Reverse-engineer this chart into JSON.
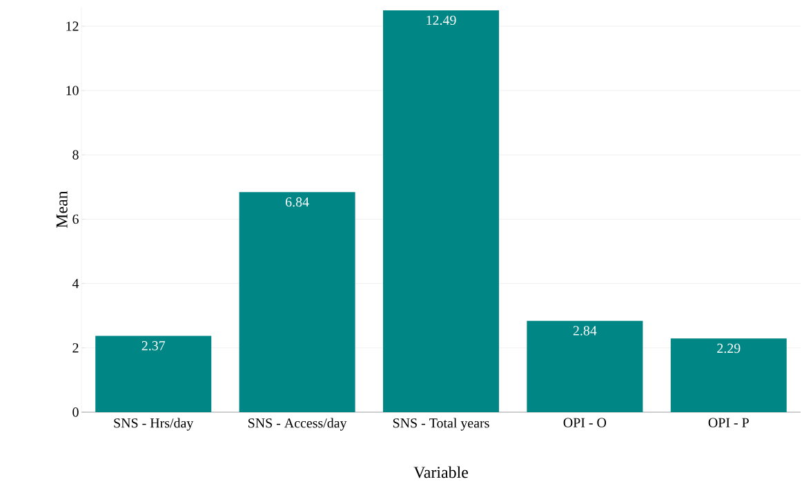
{
  "chart_data": {
    "type": "bar",
    "xlabel": "Variable",
    "ylabel": "Mean",
    "categories": [
      "SNS - Hrs/day",
      "SNS - Access/day",
      "SNS - Total years",
      "OPI - O",
      "OPI - P"
    ],
    "values": [
      2.37,
      6.84,
      12.49,
      2.84,
      2.29
    ],
    "color": "#008785",
    "ylim": [
      0,
      12.6
    ],
    "yticks": [
      0,
      2,
      4,
      6,
      8,
      10,
      12
    ],
    "grid": "y",
    "data_labels": true
  }
}
